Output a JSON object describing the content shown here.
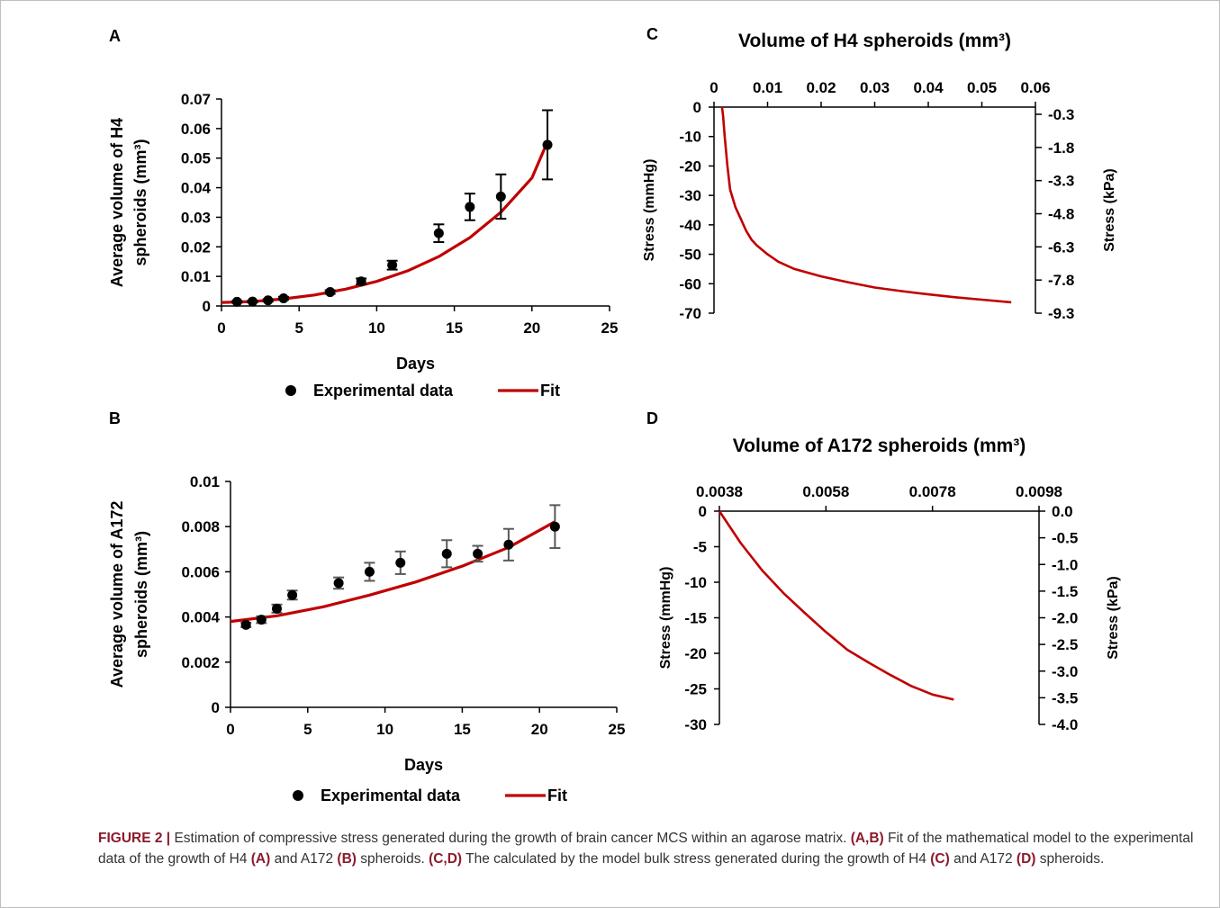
{
  "colors": {
    "axis": "#000000",
    "fit": "#c00000",
    "points": "#000000",
    "error_bars_A": "#000000",
    "error_bars_B": "#595959",
    "caption_emphasis": "#8b1a2b",
    "frame": "#bfbfbf"
  },
  "chart_data": [
    {
      "panel": "A",
      "type": "scatter",
      "xlabel": "Days",
      "ylabel_line1": "Average volume of H4",
      "ylabel_line2": "spheroids (mm³)",
      "xlim": [
        0,
        25
      ],
      "ylim": [
        0,
        0.07
      ],
      "xticks": [
        0,
        5,
        10,
        15,
        20,
        25
      ],
      "yticks": [
        0,
        0.01,
        0.02,
        0.03,
        0.04,
        0.05,
        0.06,
        0.07
      ],
      "xtick_labels": [
        "0",
        "5",
        "10",
        "15",
        "20",
        "25"
      ],
      "ytick_labels": [
        "0",
        "0.01",
        "0.02",
        "0.03",
        "0.04",
        "0.05",
        "0.06",
        "0.07"
      ],
      "legend": [
        "Experimental data",
        "Fit"
      ],
      "legend_position": "bottom",
      "series": [
        {
          "name": "Experimental data",
          "x": [
            1,
            2,
            3,
            4,
            7,
            9,
            11,
            14,
            16,
            18,
            21
          ],
          "y": [
            0.0014,
            0.0015,
            0.0019,
            0.0026,
            0.0047,
            0.0083,
            0.0138,
            0.0246,
            0.0335,
            0.037,
            0.0545
          ],
          "err": [
            0.0003,
            0.0003,
            0.0004,
            0.0005,
            0.0006,
            0.001,
            0.0015,
            0.003,
            0.0045,
            0.0075,
            0.0117
          ]
        },
        {
          "name": "Fit",
          "x": [
            0,
            2,
            4,
            6,
            8,
            10,
            12,
            14,
            16,
            18,
            20,
            21
          ],
          "y": [
            0.0012,
            0.0015,
            0.0024,
            0.0037,
            0.0057,
            0.0083,
            0.0119,
            0.0167,
            0.0231,
            0.0317,
            0.0433,
            0.0555
          ]
        }
      ]
    },
    {
      "panel": "B",
      "type": "scatter",
      "xlabel": "Days",
      "ylabel_line1": "Average volume of A172",
      "ylabel_line2": "spheroids (mm³)",
      "xlim": [
        0,
        25
      ],
      "ylim": [
        0,
        0.01
      ],
      "xticks": [
        0,
        5,
        10,
        15,
        20,
        25
      ],
      "yticks": [
        0,
        0.002,
        0.004,
        0.006,
        0.008,
        0.01
      ],
      "xtick_labels": [
        "0",
        "5",
        "10",
        "15",
        "20",
        "25"
      ],
      "ytick_labels": [
        "0",
        "0.002",
        "0.004",
        "0.006",
        "0.008",
        "0.01"
      ],
      "legend": [
        "Experimental data",
        "Fit"
      ],
      "legend_position": "bottom",
      "series": [
        {
          "name": "Experimental data",
          "x": [
            1,
            2,
            3,
            4,
            7,
            9,
            11,
            14,
            16,
            18,
            21
          ],
          "y": [
            0.00365,
            0.00388,
            0.00437,
            0.00497,
            0.0055,
            0.006,
            0.0064,
            0.0068,
            0.0068,
            0.0072,
            0.008
          ],
          "err": [
            0.0001,
            0.00015,
            0.00018,
            0.0002,
            0.00025,
            0.0004,
            0.0005,
            0.0006,
            0.00035,
            0.0007,
            0.00095
          ]
        },
        {
          "name": "Fit",
          "x": [
            0,
            3,
            6,
            9,
            12,
            15,
            18,
            21
          ],
          "y": [
            0.0038,
            0.00405,
            0.00445,
            0.00497,
            0.00555,
            0.00625,
            0.00708,
            0.00822
          ]
        }
      ]
    },
    {
      "panel": "C",
      "type": "line",
      "title": "Volume of H4 spheroids (mm³)",
      "xaxis_position": "top",
      "ylabel_left": "Stress (mmHg)",
      "ylabel_right": "Stress (kPa)",
      "xlim": [
        0,
        0.06
      ],
      "ylim": [
        -70,
        0
      ],
      "xticks": [
        0,
        0.01,
        0.02,
        0.03,
        0.04,
        0.05,
        0.06
      ],
      "xtick_labels": [
        "0",
        "0.01",
        "0.02",
        "0.03",
        "0.04",
        "0.05",
        "0.06"
      ],
      "yticks_left": [
        0,
        -10,
        -20,
        -30,
        -40,
        -50,
        -60,
        -70
      ],
      "ytick_labels_left": [
        "0",
        "-10",
        "-20",
        "-30",
        "-40",
        "-50",
        "-60",
        "-70"
      ],
      "ytick_labels_right": [
        "-0.3",
        "-1.8",
        "-3.3",
        "-4.8",
        "-6.3",
        "-7.8",
        "-9.3"
      ],
      "series": [
        {
          "x": [
            0.0015,
            0.0017,
            0.002,
            0.0025,
            0.003,
            0.004,
            0.005,
            0.006,
            0.007,
            0.008,
            0.01,
            0.012,
            0.015,
            0.02,
            0.025,
            0.03,
            0.035,
            0.04,
            0.045,
            0.05,
            0.0555
          ],
          "y": [
            0,
            -3,
            -10,
            -20,
            -28,
            -34,
            -38,
            -42,
            -45,
            -47,
            -50,
            -52.5,
            -55,
            -57.5,
            -59.5,
            -61.3,
            -62.5,
            -63.6,
            -64.6,
            -65.4,
            -66.3
          ]
        }
      ]
    },
    {
      "panel": "D",
      "type": "line",
      "title": "Volume of A172 spheroids (mm³)",
      "xaxis_position": "top",
      "ylabel_left": "Stress (mmHg)",
      "ylabel_right": "Stress (kPa)",
      "xlim": [
        0.0038,
        0.0098
      ],
      "ylim": [
        -30,
        0
      ],
      "xticks": [
        0.0038,
        0.0058,
        0.0078,
        0.0098
      ],
      "xtick_labels": [
        "0.0038",
        "0.0058",
        "0.0078",
        "0.0098"
      ],
      "yticks_left": [
        0,
        -5,
        -10,
        -15,
        -20,
        -25,
        -30
      ],
      "ytick_labels_left": [
        "0",
        "-5",
        "-10",
        "-15",
        "-20",
        "-25",
        "-30"
      ],
      "yticks_right": [
        0,
        -0.5,
        -1,
        -1.5,
        -2,
        -2.5,
        -3,
        -3.5,
        -4
      ],
      "ytick_labels_right": [
        "0.0",
        "-0.5",
        "-1.0",
        "-1.5",
        "-2.0",
        "-2.5",
        "-3.0",
        "-3.5",
        "-4.0"
      ],
      "series": [
        {
          "x": [
            0.0038,
            0.0042,
            0.0046,
            0.005,
            0.0054,
            0.0058,
            0.0062,
            0.0066,
            0.007,
            0.0074,
            0.0078,
            0.0082
          ],
          "y": [
            0,
            -4.5,
            -8.3,
            -11.5,
            -14.3,
            -17,
            -19.5,
            -21.3,
            -23,
            -24.6,
            -25.8,
            -26.5
          ]
        }
      ]
    }
  ],
  "caption": {
    "label": "FIGURE 2 |",
    "s1": " Estimation of compressive stress generated during the growth of brain cancer MCS within an agarose matrix. ",
    "b1": "(A,B)",
    "s2": " Fit of the mathematical model to the experimental data of the growth of H4 ",
    "b2": "(A)",
    "s3": " and A172 ",
    "b3": "(B)",
    "s4": " spheroids. ",
    "b4": "(C,D)",
    "s5": " The calculated by the model bulk stress generated during the growth of H4 ",
    "b5": "(C)",
    "s6": " and A172 ",
    "b6": "(D)",
    "s7": " spheroids."
  }
}
